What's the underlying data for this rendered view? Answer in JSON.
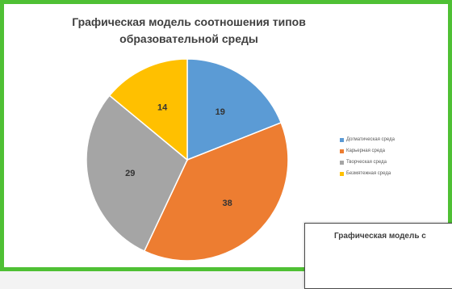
{
  "chart_data": [
    {
      "type": "pie",
      "title": "Графическая модель соотношения типов образовательной среды",
      "title_lines": [
        "Графическая модель соотношения типов",
        "образовательной среды"
      ],
      "categories": [
        "Догматическая среда",
        "Карьерная среда",
        "Творческая среда",
        "Безмятежная среда"
      ],
      "values": [
        19,
        38,
        29,
        14
      ],
      "colors": [
        "#5b9bd5",
        "#ed7d31",
        "#a5a5a5",
        "#ffc000"
      ],
      "legend_position": "right",
      "data_labels": true
    },
    {
      "type": "pie",
      "title": "Графическая модель с",
      "partially_visible": true
    }
  ],
  "frame_color": "#4fc034"
}
